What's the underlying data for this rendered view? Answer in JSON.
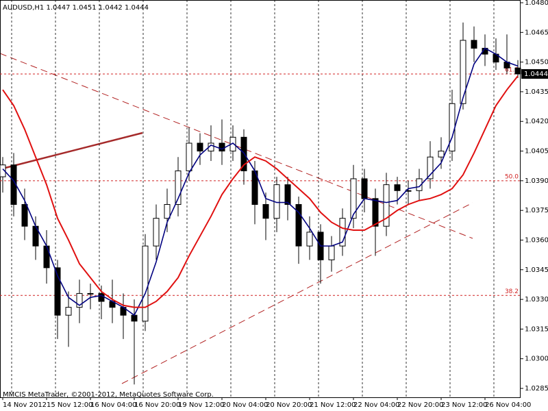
{
  "chart_data": {
    "type": "candlestick",
    "title": "AUDUSD,H1  1.0447 1.0451 1.0442 1.0444",
    "credit": "MMCIS MetaTrader, ©2001-2012, MetaQuotes Software Corp.",
    "categories": [
      "14 Nov 2012",
      null,
      null,
      null,
      "15 Nov 12:00",
      null,
      null,
      null,
      "16 Nov 04:00",
      null,
      null,
      null,
      "16 Nov 20:00",
      null,
      null,
      null,
      "19 Nov 12:00",
      null,
      null,
      null,
      "20 Nov 04:00",
      null,
      null,
      null,
      "20 Nov 20:00",
      null,
      null,
      null,
      "21 Nov 12:00",
      null,
      null,
      null,
      "22 Nov 04:00",
      null,
      null,
      null,
      "22 Nov 20:00",
      null,
      null,
      null,
      "23 Nov 12:00",
      null,
      null,
      null,
      "26 Nov 04:00",
      null,
      null,
      null
    ],
    "open": [
      1.0392,
      1.0398,
      1.0378,
      1.0367,
      1.0357,
      1.0346,
      1.0322,
      1.0326,
      1.0333,
      1.0333,
      1.0329,
      1.0326,
      1.0322,
      1.0319,
      1.0357,
      1.0371,
      1.0378,
      1.0395,
      1.0409,
      1.0405,
      1.0409,
      1.0405,
      1.0412,
      1.0395,
      1.0378,
      1.0371,
      1.0388,
      1.0378,
      1.0357,
      1.0364,
      1.035,
      1.0357,
      1.0371,
      1.0391,
      1.0381,
      1.0367,
      1.0388,
      1.0385,
      1.0385,
      1.0391,
      1.0402,
      1.0405,
      1.0429,
      1.0461,
      1.0457,
      1.0454,
      1.045,
      1.0447
    ],
    "high": [
      1.0402,
      1.0404,
      1.0386,
      1.0372,
      1.0365,
      1.035,
      1.0334,
      1.034,
      1.0338,
      1.0337,
      1.034,
      1.0333,
      1.033,
      1.0363,
      1.0378,
      1.0386,
      1.0402,
      1.0417,
      1.0414,
      1.0418,
      1.0421,
      1.0418,
      1.0416,
      1.04,
      1.0384,
      1.0392,
      1.0392,
      1.0382,
      1.0372,
      1.0368,
      1.0362,
      1.0376,
      1.0398,
      1.0396,
      1.0386,
      1.0394,
      1.0392,
      1.039,
      1.0396,
      1.041,
      1.0412,
      1.0436,
      1.047,
      1.0468,
      1.0464,
      1.0462,
      1.0464,
      1.0451
    ],
    "low": [
      1.0384,
      1.0372,
      1.036,
      1.035,
      1.0338,
      1.031,
      1.0306,
      1.0318,
      1.0325,
      1.032,
      1.0318,
      1.031,
      1.0287,
      1.0314,
      1.035,
      1.0364,
      1.0372,
      1.039,
      1.0398,
      1.04,
      1.0398,
      1.04,
      1.0388,
      1.0368,
      1.036,
      1.0364,
      1.037,
      1.0348,
      1.035,
      1.0338,
      1.0344,
      1.0352,
      1.0366,
      1.0374,
      1.0352,
      1.0362,
      1.0378,
      1.0378,
      1.038,
      1.0386,
      1.0396,
      1.04,
      1.0426,
      1.045,
      1.0448,
      1.0446,
      1.0444,
      1.0442
    ],
    "close": [
      1.0398,
      1.0378,
      1.0367,
      1.0357,
      1.0346,
      1.0322,
      1.0326,
      1.0333,
      1.0333,
      1.0329,
      1.0326,
      1.0322,
      1.0319,
      1.0357,
      1.0371,
      1.0378,
      1.0395,
      1.0409,
      1.0405,
      1.0409,
      1.0405,
      1.0412,
      1.0395,
      1.0378,
      1.0371,
      1.0388,
      1.0378,
      1.0357,
      1.0364,
      1.035,
      1.0357,
      1.0371,
      1.0391,
      1.0381,
      1.0367,
      1.0388,
      1.0385,
      1.0385,
      1.0391,
      1.0402,
      1.0405,
      1.0429,
      1.0461,
      1.0457,
      1.0454,
      1.045,
      1.0447,
      1.0444
    ],
    "up_color": "#ffffff",
    "down_color": "#000000",
    "series": [
      {
        "color": "#000080",
        "values": [
          1.0396,
          1.039,
          1.038,
          1.0367,
          1.0357,
          1.0342,
          1.0331,
          1.0327,
          1.0331,
          1.0332,
          1.0329,
          1.0326,
          1.0322,
          1.0333,
          1.0349,
          1.0369,
          1.0381,
          1.0394,
          1.0403,
          1.0408,
          1.0406,
          1.0409,
          1.0404,
          1.0395,
          1.0381,
          1.0379,
          1.0379,
          1.0374,
          1.0366,
          1.0357,
          1.0357,
          1.0359,
          1.0373,
          1.0381,
          1.038,
          1.0379,
          1.038,
          1.0386,
          1.0387,
          1.0393,
          1.0399,
          1.0412,
          1.0432,
          1.0449,
          1.0457,
          1.0454,
          1.045,
          1.0448
        ]
      },
      {
        "color": "#e01010",
        "values": [
          1.0436,
          1.0428,
          1.0416,
          1.0402,
          1.0388,
          1.0371,
          1.036,
          1.0348,
          1.0341,
          1.0334,
          1.033,
          1.0327,
          1.0326,
          1.0326,
          1.0329,
          1.0334,
          1.0341,
          1.0352,
          1.0362,
          1.0372,
          1.0383,
          1.0391,
          1.0398,
          1.0402,
          1.04,
          1.0396,
          1.0391,
          1.0386,
          1.0381,
          1.0374,
          1.0369,
          1.0366,
          1.0365,
          1.0365,
          1.0368,
          1.0371,
          1.0375,
          1.0378,
          1.038,
          1.0381,
          1.0383,
          1.0386,
          1.0393,
          1.0404,
          1.0416,
          1.0428,
          1.0436,
          1.0443
        ]
      }
    ],
    "levels": [
      {
        "label": "61.8",
        "value": 1.0444
      },
      {
        "label": "50.0",
        "value": 1.039
      },
      {
        "label": "38.2",
        "value": 1.0332
      }
    ],
    "last_price": 1.0444,
    "ylim": [
      1.0285,
      1.048
    ],
    "yticks": [
      1.0285,
      {
        "value": 1.03,
        "label": "1.0300"
      },
      1.0315,
      {
        "value": 1.033,
        "label": "1.0330"
      },
      1.0345,
      {
        "value": 1.036,
        "label": "1.0360"
      },
      1.0375,
      {
        "value": 1.039,
        "label": "1.0390"
      },
      1.0405,
      {
        "value": 1.042,
        "label": "1.0420"
      },
      1.0435,
      {
        "value": 1.045,
        "label": "1.0450"
      },
      1.0465,
      {
        "value": 1.048,
        "label": "1.0480"
      }
    ],
    "grid": true
  }
}
